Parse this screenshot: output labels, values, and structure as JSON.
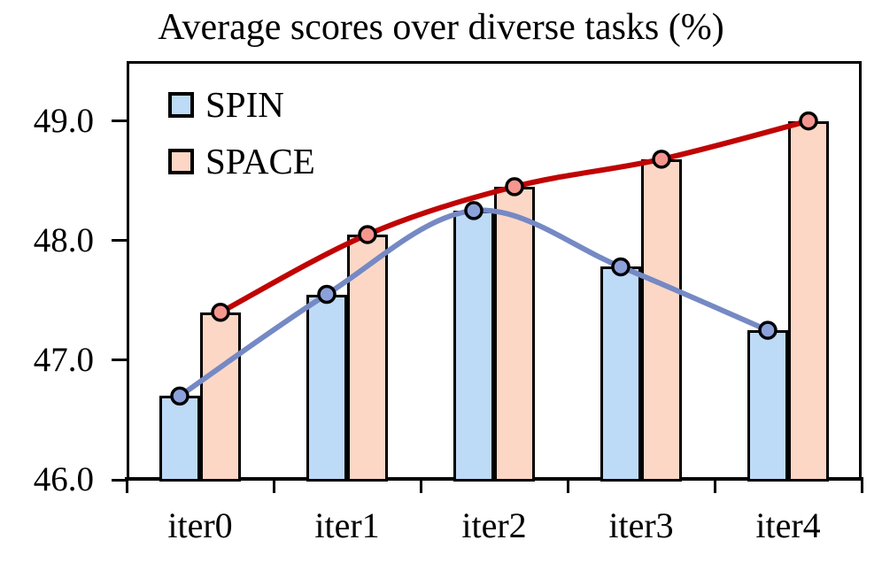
{
  "chart_data": {
    "type": "bar",
    "subtype": "grouped-bars-with-line-overlay",
    "title": "Average scores over diverse tasks (%)",
    "categories": [
      "iter0",
      "iter1",
      "iter2",
      "iter3",
      "iter4"
    ],
    "series": [
      {
        "name": "SPIN",
        "values": [
          46.7,
          47.55,
          48.25,
          47.78,
          47.25
        ],
        "bar_fill": "#BDDAF7",
        "line_color": "#7589C4",
        "marker_fill": "#8CA1DB"
      },
      {
        "name": "SPACE",
        "values": [
          47.4,
          48.05,
          48.45,
          48.68,
          49.0
        ],
        "bar_fill": "#FCD7C6",
        "line_color": "#C00404",
        "marker_fill": "#F5968F"
      }
    ],
    "xlabel": "",
    "ylabel": "",
    "y_tick_labels": [
      "46.0",
      "47.0",
      "48.0",
      "49.0"
    ],
    "y_tick_values": [
      46.0,
      47.0,
      48.0,
      49.0
    ],
    "ylim": [
      46.0,
      49.5
    ],
    "grid": false,
    "legend_position": "top-left-inside",
    "bar_border_color": "#000000",
    "axis_color": "#000000",
    "background_color": "#FFFFFF"
  }
}
